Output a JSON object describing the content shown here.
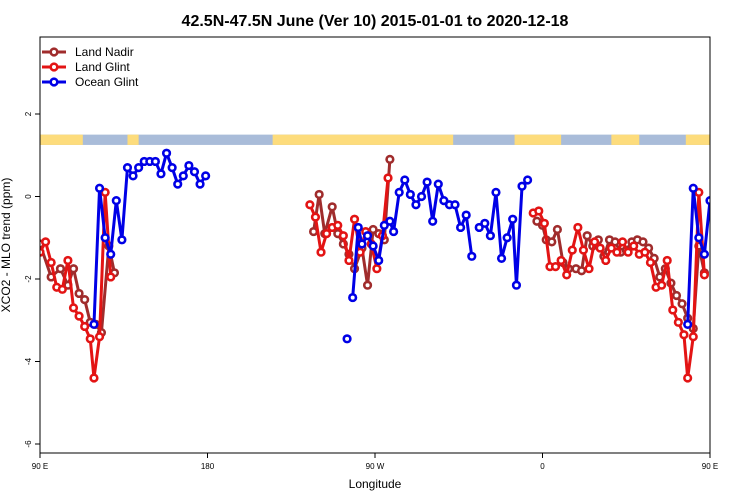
{
  "chart_data": {
    "type": "line",
    "title": "42.5N-47.5N June (Ver 10)   2015-01-01 to 2020-12-18",
    "xlabel": "Longitude",
    "ylabel": "XCO2 - MLO trend (ppm)",
    "xlim": [
      90,
      450
    ],
    "ylim": [
      -6,
      2
    ],
    "x_ticks": [
      {
        "value": 90,
        "label": "90 E"
      },
      {
        "value": 180,
        "label": "180"
      },
      {
        "value": 270,
        "label": "90 W"
      },
      {
        "value": 360,
        "label": "0"
      },
      {
        "value": 450,
        "label": "90 E"
      },
      {
        "value": 540,
        "label": "180"
      }
    ],
    "y_ticks": [
      {
        "value": -6,
        "label": "-6"
      },
      {
        "value": -4,
        "label": "-4"
      },
      {
        "value": -2,
        "label": "-2"
      },
      {
        "value": 0,
        "label": "0"
      },
      {
        "value": 2,
        "label": "2"
      }
    ],
    "legend_position": "top-left",
    "grid": false,
    "land_ocean_strip": {
      "y_range": [
        1.25,
        1.5
      ],
      "land_color": "#fddc7c",
      "ocean_color": "#a9bcd9",
      "land_segments": [
        [
          90,
          113
        ],
        [
          137,
          143
        ],
        [
          215,
          312
        ],
        [
          345,
          370
        ],
        [
          397,
          412
        ],
        [
          437,
          471
        ],
        [
          474,
          484
        ],
        [
          525,
          533
        ]
      ]
    },
    "series": [
      {
        "name": "Land Nadir",
        "color": "#a02c2c",
        "segments": [
          [
            [
              90,
              -1.15
            ],
            [
              96,
              -1.95
            ],
            [
              101,
              -1.75
            ],
            [
              105,
              -2.15
            ],
            [
              108,
              -1.75
            ],
            [
              111,
              -2.35
            ],
            [
              114,
              -2.5
            ],
            [
              117,
              -3.05
            ],
            [
              120,
              -3.1
            ],
            [
              123,
              -3.3
            ],
            [
              127,
              -1.2
            ],
            [
              130,
              -1.85
            ]
          ],
          [
            [
              237,
              -0.85
            ],
            [
              240,
              0.05
            ],
            [
              243,
              -0.9
            ],
            [
              247,
              -0.25
            ],
            [
              250,
              -0.9
            ],
            [
              253,
              -1.15
            ],
            [
              256,
              -1.4
            ],
            [
              259,
              -1.75
            ],
            [
              263,
              -1.25
            ],
            [
              266,
              -2.15
            ],
            [
              269,
              -0.8
            ],
            [
              272,
              -0.9
            ],
            [
              275,
              -1.05
            ],
            [
              278,
              0.9
            ]
          ],
          [
            [
              357,
              -0.6
            ],
            [
              360,
              -0.7
            ],
            [
              362,
              -1.05
            ],
            [
              365,
              -1.1
            ],
            [
              368,
              -0.8
            ],
            [
              371,
              -1.6
            ],
            [
              374,
              -1.75
            ],
            [
              378,
              -1.75
            ],
            [
              381,
              -1.8
            ],
            [
              384,
              -0.95
            ],
            [
              387,
              -1.2
            ],
            [
              390,
              -1.05
            ],
            [
              393,
              -1.45
            ],
            [
              396,
              -1.05
            ],
            [
              399,
              -1.1
            ],
            [
              402,
              -1.35
            ],
            [
              405,
              -1.3
            ],
            [
              408,
              -1.1
            ],
            [
              411,
              -1.05
            ],
            [
              414,
              -1.1
            ],
            [
              417,
              -1.25
            ],
            [
              420,
              -1.5
            ],
            [
              423,
              -1.95
            ],
            [
              426,
              -1.75
            ],
            [
              429,
              -2.1
            ],
            [
              432,
              -2.4
            ],
            [
              435,
              -2.6
            ],
            [
              438,
              -2.95
            ],
            [
              441,
              -3.2
            ],
            [
              444,
              -1.2
            ],
            [
              447,
              -1.85
            ]
          ]
        ]
      },
      {
        "name": "Land Glint",
        "color": "#e31414",
        "segments": [
          [
            [
              90,
              -1.35
            ],
            [
              93,
              -1.1
            ],
            [
              96,
              -1.6
            ],
            [
              99,
              -2.2
            ],
            [
              102,
              -2.25
            ],
            [
              105,
              -1.55
            ],
            [
              108,
              -2.7
            ],
            [
              111,
              -2.9
            ],
            [
              114,
              -3.15
            ],
            [
              117,
              -3.45
            ],
            [
              119,
              -4.4
            ],
            [
              122,
              -3.4
            ],
            [
              125,
              0.1
            ],
            [
              128,
              -1.95
            ]
          ],
          [
            [
              235,
              -0.2
            ],
            [
              238,
              -0.5
            ],
            [
              241,
              -1.35
            ],
            [
              244,
              -0.9
            ],
            [
              247,
              -0.75
            ],
            [
              250,
              -0.7
            ],
            [
              253,
              -0.95
            ],
            [
              256,
              -1.55
            ],
            [
              259,
              -0.55
            ],
            [
              262,
              -1.35
            ],
            [
              265,
              -0.85
            ],
            [
              268,
              -1.15
            ],
            [
              271,
              -1.75
            ],
            [
              274,
              -0.95
            ],
            [
              277,
              0.45
            ]
          ],
          [
            [
              355,
              -0.4
            ],
            [
              358,
              -0.35
            ],
            [
              361,
              -0.65
            ],
            [
              364,
              -1.7
            ],
            [
              367,
              -1.7
            ],
            [
              370,
              -1.55
            ],
            [
              373,
              -1.9
            ],
            [
              376,
              -1.3
            ],
            [
              379,
              -0.75
            ],
            [
              382,
              -1.3
            ],
            [
              385,
              -1.75
            ],
            [
              388,
              -1.1
            ],
            [
              391,
              -1.25
            ],
            [
              394,
              -1.55
            ],
            [
              397,
              -1.25
            ],
            [
              400,
              -1.35
            ],
            [
              403,
              -1.1
            ],
            [
              406,
              -1.35
            ],
            [
              409,
              -1.2
            ],
            [
              412,
              -1.4
            ],
            [
              415,
              -1.35
            ],
            [
              418,
              -1.6
            ],
            [
              421,
              -2.2
            ],
            [
              424,
              -2.15
            ],
            [
              427,
              -1.55
            ],
            [
              430,
              -2.75
            ],
            [
              433,
              -3.05
            ],
            [
              436,
              -3.35
            ],
            [
              438,
              -4.4
            ],
            [
              441,
              -3.4
            ],
            [
              444,
              0.1
            ],
            [
              447,
              -1.9
            ]
          ]
        ]
      },
      {
        "name": "Ocean Glint",
        "color": "#0000e6",
        "segments": [
          [
            [
              119,
              -3.1
            ],
            [
              122,
              0.2
            ],
            [
              125,
              -1.0
            ],
            [
              128,
              -1.4
            ],
            [
              131,
              -0.1
            ],
            [
              134,
              -1.05
            ],
            [
              137,
              0.7
            ],
            [
              140,
              0.5
            ],
            [
              143,
              0.7
            ],
            [
              146,
              0.85
            ],
            [
              149,
              0.85
            ],
            [
              152,
              0.85
            ],
            [
              155,
              0.55
            ],
            [
              158,
              1.05
            ],
            [
              161,
              0.7
            ],
            [
              164,
              0.3
            ],
            [
              167,
              0.5
            ],
            [
              170,
              0.75
            ],
            [
              173,
              0.6
            ],
            [
              176,
              0.3
            ],
            [
              179,
              0.5
            ]
          ],
          [
            [
              258,
              -2.45
            ],
            [
              261,
              -0.75
            ],
            [
              263,
              -1.15
            ],
            [
              266,
              -0.95
            ],
            [
              269,
              -1.2
            ],
            [
              272,
              -1.55
            ],
            [
              275,
              -0.7
            ],
            [
              278,
              -0.6
            ],
            [
              280,
              -0.85
            ],
            [
              283,
              0.1
            ],
            [
              286,
              0.4
            ],
            [
              289,
              0.05
            ],
            [
              292,
              -0.2
            ],
            [
              295,
              0.0
            ],
            [
              298,
              0.35
            ],
            [
              301,
              -0.6
            ],
            [
              304,
              0.3
            ],
            [
              307,
              -0.1
            ],
            [
              310,
              -0.2
            ],
            [
              313,
              -0.2
            ],
            [
              316,
              -0.75
            ],
            [
              319,
              -0.45
            ],
            [
              322,
              -1.45
            ]
          ],
          [
            [
              326,
              -0.75
            ],
            [
              329,
              -0.65
            ],
            [
              332,
              -0.95
            ],
            [
              335,
              0.1
            ],
            [
              338,
              -1.5
            ],
            [
              341,
              -1.0
            ],
            [
              344,
              -0.55
            ],
            [
              346,
              -2.15
            ],
            [
              349,
              0.25
            ],
            [
              352,
              0.4
            ]
          ],
          [
            [
              438,
              -3.1
            ],
            [
              441,
              0.2
            ],
            [
              444,
              -1.0
            ],
            [
              447,
              -1.4
            ],
            [
              450,
              -0.1
            ]
          ],
          [
            [
              455,
              -1.05
            ],
            [
              458,
              0.7
            ],
            [
              461,
              0.5
            ],
            [
              464,
              0.7
            ]
          ]
        ]
      }
    ],
    "isolated_points": [
      {
        "series": "Ocean Glint",
        "x": 255,
        "y": -3.45
      }
    ]
  }
}
